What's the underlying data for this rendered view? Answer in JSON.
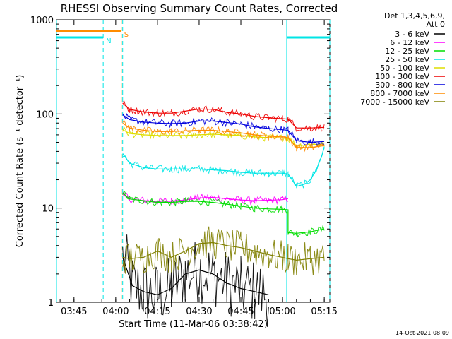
{
  "chart_data": {
    "type": "line",
    "title": "RHESSI Observing Summary Count Rates, Corrected",
    "xlabel": "Start Time (11-Mar-06 03:38:42)",
    "ylabel": "Corrected Count Rate (s⁻¹ detector⁻¹)",
    "ylim": [
      1,
      1000
    ],
    "yscale": "log",
    "xlim": [
      "03:38:42",
      "05:17:00"
    ],
    "xticks": [
      "03:45",
      "04:00",
      "04:15",
      "04:30",
      "04:45",
      "05:00",
      "05:15"
    ],
    "yticks": [
      "1",
      "10",
      "100",
      "1000"
    ],
    "legend_header": [
      "Det 1,3,4,5,6,9,",
      "Att 0"
    ],
    "legend_position": "right",
    "timestamp": "14-Oct-2021 08:09",
    "annotations": [
      {
        "label": "N",
        "color": "#00e5e5",
        "dashed_line_time": "03:55:30",
        "bar_from": "03:38:42",
        "bar_to": "03:55:30",
        "bar_value": 650
      },
      {
        "label": "S",
        "color": "#ff8c00",
        "dashed_line_time": "04:02:00",
        "bar_from": "03:38:42",
        "bar_to": "04:02:00",
        "bar_value": 760
      }
    ],
    "night_intervals": [
      {
        "from": "03:38:42",
        "to": "04:02:30"
      },
      {
        "from": "05:01:30",
        "to": "05:17:00"
      }
    ],
    "series": [
      {
        "name": "3 - 6 keV",
        "color": "#000000",
        "x": [
          "04:02:30",
          "04:06",
          "04:10",
          "04:15",
          "04:20",
          "04:25",
          "04:30",
          "04:35",
          "04:40",
          "04:45",
          "04:50",
          "04:55"
        ],
        "values": [
          3.0,
          1.5,
          1.3,
          1.2,
          1.4,
          2.0,
          2.2,
          2.0,
          1.6,
          1.4,
          1.3,
          1.2
        ]
      },
      {
        "name": "6 - 12 keV",
        "color": "#ff00ff",
        "x": [
          "04:02:30",
          "04:05",
          "04:10",
          "04:15",
          "04:20",
          "04:25",
          "04:30",
          "04:35",
          "04:40",
          "04:45",
          "04:50",
          "04:55",
          "05:00",
          "05:02"
        ],
        "values": [
          14.0,
          12.5,
          12.0,
          11.8,
          11.9,
          12.2,
          12.8,
          13.0,
          12.6,
          12.2,
          12.0,
          12.1,
          12.3,
          12.6
        ]
      },
      {
        "name": "12 - 25 keV",
        "color": "#00dd00",
        "x": [
          "04:02:30",
          "04:05",
          "04:10",
          "04:15",
          "04:20",
          "04:25",
          "04:30",
          "04:35",
          "04:40",
          "04:45",
          "04:50",
          "04:55",
          "05:00",
          "05:02",
          "05:02",
          "05:05",
          "05:10",
          "05:15"
        ],
        "values": [
          14.5,
          12.5,
          12.0,
          11.5,
          11.5,
          11.8,
          11.8,
          11.5,
          11.0,
          10.5,
          10.0,
          9.8,
          9.7,
          9.6,
          5.5,
          5.4,
          5.6,
          6.0
        ]
      },
      {
        "name": "25 - 50 keV",
        "color": "#00e5e5",
        "x": [
          "04:02:30",
          "04:05",
          "04:10",
          "04:15",
          "04:20",
          "04:25",
          "04:30",
          "04:35",
          "04:40",
          "04:45",
          "04:50",
          "04:55",
          "05:00",
          "05:02",
          "05:05",
          "05:08",
          "05:10",
          "05:12",
          "05:14",
          "05:15"
        ],
        "values": [
          38,
          30,
          27,
          26,
          26,
          26,
          26,
          25.5,
          25,
          24,
          23.5,
          23.5,
          23.5,
          23,
          17,
          18,
          20,
          25,
          35,
          45
        ]
      },
      {
        "name": "50 - 100 keV",
        "color": "#dddd00",
        "x": [
          "04:02:30",
          "04:05",
          "04:10",
          "04:15",
          "04:20",
          "04:25",
          "04:30",
          "04:35",
          "04:40",
          "04:45",
          "04:50",
          "04:55",
          "05:00",
          "05:02",
          "05:05",
          "05:10",
          "05:15"
        ],
        "values": [
          68,
          62,
          60,
          59,
          59,
          59,
          60,
          61,
          60,
          59,
          57,
          56,
          55.5,
          55,
          46,
          47,
          48
        ]
      },
      {
        "name": "100 - 300 keV",
        "color": "#ee0000",
        "x": [
          "04:02:30",
          "04:05",
          "04:10",
          "04:15",
          "04:20",
          "04:25",
          "04:30",
          "04:35",
          "04:40",
          "04:45",
          "04:50",
          "04:55",
          "05:00",
          "05:02",
          "05:05",
          "05:10",
          "05:15"
        ],
        "values": [
          130,
          112,
          105,
          102,
          102,
          107,
          113,
          112,
          104,
          100,
          94,
          91,
          89,
          88,
          71,
          71,
          72
        ]
      },
      {
        "name": "300 - 800 keV",
        "color": "#0000dd",
        "x": [
          "04:02:30",
          "04:05",
          "04:10",
          "04:15",
          "04:20",
          "04:25",
          "04:30",
          "04:35",
          "04:40",
          "04:45",
          "04:50",
          "04:55",
          "05:00",
          "05:02",
          "05:05",
          "05:10",
          "05:15"
        ],
        "values": [
          98,
          87,
          82,
          80,
          79,
          80,
          84,
          84,
          81,
          78,
          73,
          70,
          68,
          67,
          52,
          50,
          51
        ]
      },
      {
        "name": "800 - 7000 keV",
        "color": "#ff8c00",
        "x": [
          "04:02:30",
          "04:05",
          "04:10",
          "04:15",
          "04:20",
          "04:25",
          "04:30",
          "04:35",
          "04:40",
          "04:45",
          "04:50",
          "04:55",
          "05:00",
          "05:02",
          "05:05",
          "05:10",
          "05:15"
        ],
        "values": [
          80,
          71,
          67,
          65,
          65,
          66,
          67,
          67,
          65,
          63,
          60,
          58,
          57,
          56,
          44,
          44,
          46
        ]
      },
      {
        "name": "7000 - 15000 keV",
        "color": "#808000",
        "x": [
          "04:02:30",
          "04:05",
          "04:10",
          "04:15",
          "04:20",
          "04:25",
          "04:30",
          "04:35",
          "04:40",
          "04:45",
          "04:50",
          "04:55",
          "05:00",
          "05:02",
          "05:05",
          "05:10",
          "05:15"
        ],
        "values": [
          3.0,
          2.9,
          3.0,
          3.5,
          3.0,
          3.5,
          4.2,
          4.3,
          4.0,
          3.8,
          3.5,
          3.2,
          3.0,
          2.9,
          2.8,
          2.9,
          3.0
        ]
      }
    ]
  }
}
